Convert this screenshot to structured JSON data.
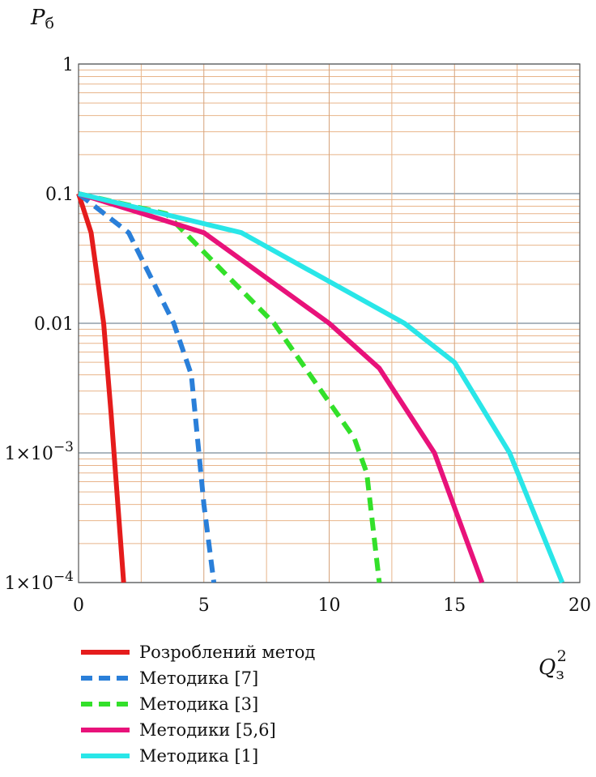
{
  "chart_data": {
    "type": "line",
    "ylabel": "P",
    "ylabel_sub": "б",
    "xlabel": "Q",
    "xlabel_sub": "з",
    "xlabel_sup": "2",
    "xlim": [
      0,
      20
    ],
    "ylim": [
      0.0001,
      1
    ],
    "yscale": "log",
    "grid": true,
    "legend_placement": "bottom-left",
    "x_ticks": [
      {
        "value": 0,
        "label": "0"
      },
      {
        "value": 5,
        "label": "5"
      },
      {
        "value": 10,
        "label": "10"
      },
      {
        "value": 15,
        "label": "15"
      },
      {
        "value": 20,
        "label": "20"
      }
    ],
    "y_ticks": [
      {
        "value": 1,
        "label": "1"
      },
      {
        "value": 0.1,
        "label": "0.1"
      },
      {
        "value": 0.01,
        "label": "0.01"
      },
      {
        "value": 0.001,
        "label": "1×10",
        "exp": "−3"
      },
      {
        "value": 0.0001,
        "label": "1×10",
        "exp": "−4"
      }
    ],
    "series": [
      {
        "name": "Розроблений метод",
        "color": "#e51c1c",
        "dash": "solid",
        "x": [
          0,
          0.5,
          1.0,
          1.3,
          1.8
        ],
        "y": [
          0.1,
          0.05,
          0.01,
          0.002,
          0.0001
        ]
      },
      {
        "name": "Методика [7]",
        "color": "#2a7fd9",
        "dash": "dashed",
        "x": [
          0,
          2.0,
          3.8,
          4.5,
          5.0,
          5.4
        ],
        "y": [
          0.1,
          0.05,
          0.01,
          0.004,
          0.0004,
          0.0001
        ]
      },
      {
        "name": "Методика [3]",
        "color": "#33e02a",
        "dash": "dashed",
        "x": [
          0,
          3.5,
          7.8,
          11.0,
          11.5,
          12.0
        ],
        "y": [
          0.1,
          0.07,
          0.01,
          0.0013,
          0.0007,
          0.0001
        ]
      },
      {
        "name": "Методики [5,6]",
        "color": "#e8127a",
        "dash": "solid",
        "x": [
          0,
          5.0,
          10.0,
          12.0,
          14.2,
          16.1
        ],
        "y": [
          0.1,
          0.05,
          0.01,
          0.0045,
          0.001,
          0.0001
        ]
      },
      {
        "name": "Методика [1]",
        "color": "#29e6e8",
        "dash": "solid",
        "x": [
          0,
          6.5,
          13.0,
          15.0,
          17.2,
          19.3
        ],
        "y": [
          0.1,
          0.05,
          0.01,
          0.005,
          0.001,
          0.0001
        ]
      }
    ]
  }
}
